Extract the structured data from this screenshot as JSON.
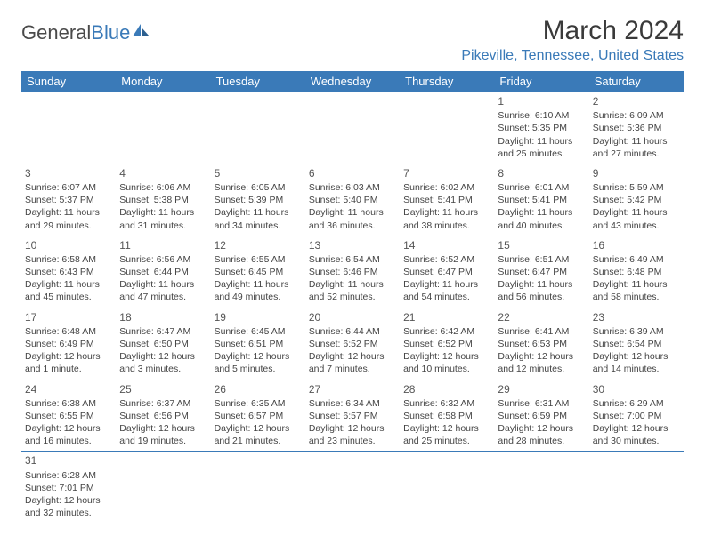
{
  "logo": {
    "text1": "General",
    "text2": "Blue"
  },
  "title": "March 2024",
  "location": "Pikeville, Tennessee, United States",
  "headerBg": "#3a7ab8",
  "days": [
    "Sunday",
    "Monday",
    "Tuesday",
    "Wednesday",
    "Thursday",
    "Friday",
    "Saturday"
  ],
  "weeks": [
    [
      null,
      null,
      null,
      null,
      null,
      {
        "n": "1",
        "rise": "6:10 AM",
        "set": "5:35 PM",
        "day": "11 hours and 25 minutes."
      },
      {
        "n": "2",
        "rise": "6:09 AM",
        "set": "5:36 PM",
        "day": "11 hours and 27 minutes."
      }
    ],
    [
      {
        "n": "3",
        "rise": "6:07 AM",
        "set": "5:37 PM",
        "day": "11 hours and 29 minutes."
      },
      {
        "n": "4",
        "rise": "6:06 AM",
        "set": "5:38 PM",
        "day": "11 hours and 31 minutes."
      },
      {
        "n": "5",
        "rise": "6:05 AM",
        "set": "5:39 PM",
        "day": "11 hours and 34 minutes."
      },
      {
        "n": "6",
        "rise": "6:03 AM",
        "set": "5:40 PM",
        "day": "11 hours and 36 minutes."
      },
      {
        "n": "7",
        "rise": "6:02 AM",
        "set": "5:41 PM",
        "day": "11 hours and 38 minutes."
      },
      {
        "n": "8",
        "rise": "6:01 AM",
        "set": "5:41 PM",
        "day": "11 hours and 40 minutes."
      },
      {
        "n": "9",
        "rise": "5:59 AM",
        "set": "5:42 PM",
        "day": "11 hours and 43 minutes."
      }
    ],
    [
      {
        "n": "10",
        "rise": "6:58 AM",
        "set": "6:43 PM",
        "day": "11 hours and 45 minutes."
      },
      {
        "n": "11",
        "rise": "6:56 AM",
        "set": "6:44 PM",
        "day": "11 hours and 47 minutes."
      },
      {
        "n": "12",
        "rise": "6:55 AM",
        "set": "6:45 PM",
        "day": "11 hours and 49 minutes."
      },
      {
        "n": "13",
        "rise": "6:54 AM",
        "set": "6:46 PM",
        "day": "11 hours and 52 minutes."
      },
      {
        "n": "14",
        "rise": "6:52 AM",
        "set": "6:47 PM",
        "day": "11 hours and 54 minutes."
      },
      {
        "n": "15",
        "rise": "6:51 AM",
        "set": "6:47 PM",
        "day": "11 hours and 56 minutes."
      },
      {
        "n": "16",
        "rise": "6:49 AM",
        "set": "6:48 PM",
        "day": "11 hours and 58 minutes."
      }
    ],
    [
      {
        "n": "17",
        "rise": "6:48 AM",
        "set": "6:49 PM",
        "day": "12 hours and 1 minute."
      },
      {
        "n": "18",
        "rise": "6:47 AM",
        "set": "6:50 PM",
        "day": "12 hours and 3 minutes."
      },
      {
        "n": "19",
        "rise": "6:45 AM",
        "set": "6:51 PM",
        "day": "12 hours and 5 minutes."
      },
      {
        "n": "20",
        "rise": "6:44 AM",
        "set": "6:52 PM",
        "day": "12 hours and 7 minutes."
      },
      {
        "n": "21",
        "rise": "6:42 AM",
        "set": "6:52 PM",
        "day": "12 hours and 10 minutes."
      },
      {
        "n": "22",
        "rise": "6:41 AM",
        "set": "6:53 PM",
        "day": "12 hours and 12 minutes."
      },
      {
        "n": "23",
        "rise": "6:39 AM",
        "set": "6:54 PM",
        "day": "12 hours and 14 minutes."
      }
    ],
    [
      {
        "n": "24",
        "rise": "6:38 AM",
        "set": "6:55 PM",
        "day": "12 hours and 16 minutes."
      },
      {
        "n": "25",
        "rise": "6:37 AM",
        "set": "6:56 PM",
        "day": "12 hours and 19 minutes."
      },
      {
        "n": "26",
        "rise": "6:35 AM",
        "set": "6:57 PM",
        "day": "12 hours and 21 minutes."
      },
      {
        "n": "27",
        "rise": "6:34 AM",
        "set": "6:57 PM",
        "day": "12 hours and 23 minutes."
      },
      {
        "n": "28",
        "rise": "6:32 AM",
        "set": "6:58 PM",
        "day": "12 hours and 25 minutes."
      },
      {
        "n": "29",
        "rise": "6:31 AM",
        "set": "6:59 PM",
        "day": "12 hours and 28 minutes."
      },
      {
        "n": "30",
        "rise": "6:29 AM",
        "set": "7:00 PM",
        "day": "12 hours and 30 minutes."
      }
    ],
    [
      {
        "n": "31",
        "rise": "6:28 AM",
        "set": "7:01 PM",
        "day": "12 hours and 32 minutes."
      },
      null,
      null,
      null,
      null,
      null,
      null
    ]
  ],
  "labels": {
    "rise": "Sunrise: ",
    "set": "Sunset: ",
    "day": "Daylight: "
  }
}
